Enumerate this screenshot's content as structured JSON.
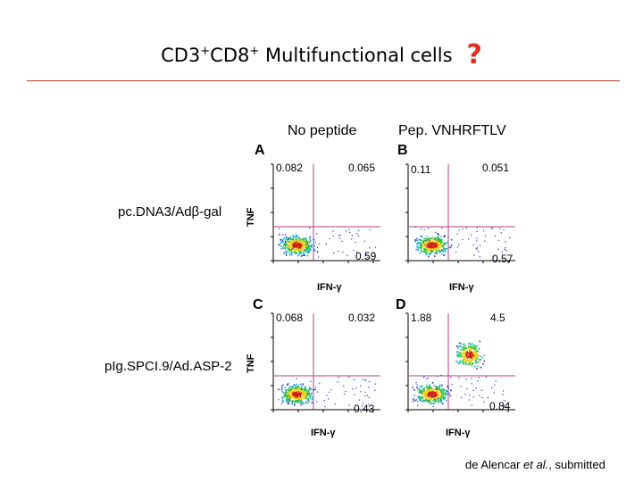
{
  "title": {
    "text_a": "CD3",
    "sup_a": "+",
    "text_b": "CD8",
    "sup_b": "+",
    "text_c": " Multifunctional cells",
    "mark": "?"
  },
  "columns": [
    "No peptide",
    "Pep. VNHRFTLV"
  ],
  "rows": [
    "pc.DNA3/Adβ-gal",
    "pIg.SPCI.9/Ad.ASP-2"
  ],
  "y_axis_label": "TNF",
  "x_axis_label": "IFN-γ",
  "panels": [
    {
      "letter": "A",
      "ul": "0.082",
      "ur": "0.065",
      "lr": "0.59",
      "double_positive_cluster": false
    },
    {
      "letter": "B",
      "ul": "0.11",
      "ur": "0.051",
      "lr": "0.57",
      "double_positive_cluster": false
    },
    {
      "letter": "C",
      "ul": "0.068",
      "ur": "0.032",
      "lr": "0.43",
      "double_positive_cluster": false
    },
    {
      "letter": "D",
      "ul": "1.88",
      "ur": "4.5",
      "lr": "0.84",
      "double_positive_cluster": true
    }
  ],
  "reference": {
    "prefix": "de Alencar ",
    "etal": "et al.",
    "suffix": ", submitted"
  },
  "colors": {
    "title_mark": "#e0301e",
    "rule": "#c0392b",
    "gate": "#b04080"
  }
}
